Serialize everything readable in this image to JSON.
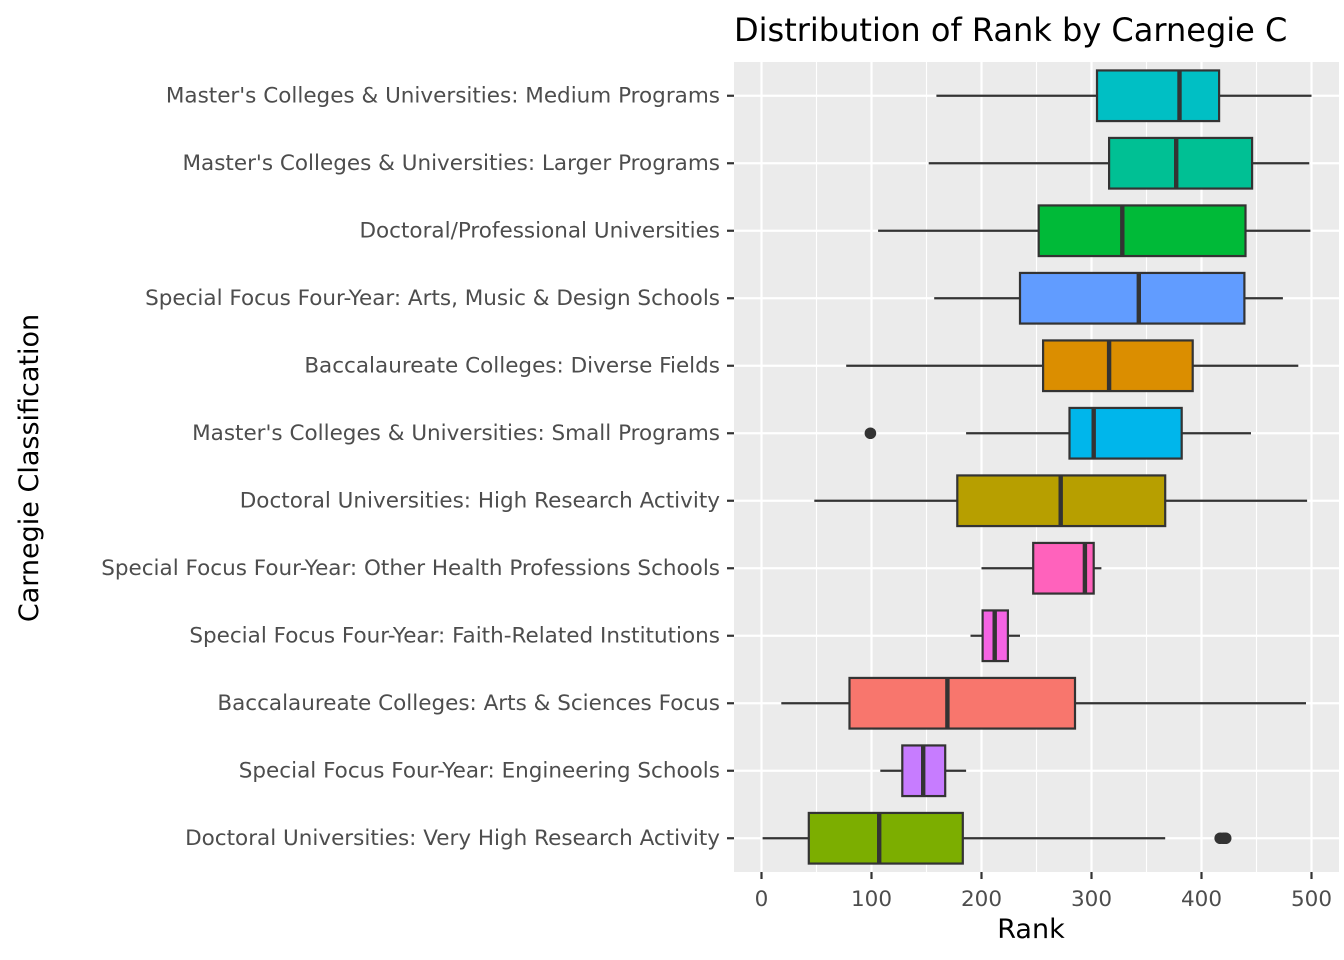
{
  "chart_data": {
    "type": "boxplot",
    "title": "Distribution of Rank by Carnegie C",
    "xlabel": "Rank",
    "ylabel": "Carnegie Classification",
    "xlim": [
      -25,
      525
    ],
    "x_ticks": [
      0,
      100,
      200,
      300,
      400,
      500
    ],
    "x_tick_labels": [
      "0",
      "100",
      "200",
      "300",
      "400",
      "500"
    ],
    "legend": "none",
    "grid": true,
    "categories": [
      "Master's Colleges & Universities: Medium Programs",
      "Master's Colleges & Universities: Larger Programs",
      "Doctoral/Professional Universities",
      "Special Focus Four-Year: Arts, Music & Design Schools",
      "Baccalaureate Colleges: Diverse Fields",
      "Master's Colleges & Universities: Small Programs",
      "Doctoral Universities: High Research Activity",
      "Special Focus Four-Year: Other Health Professions Schools",
      "Special Focus Four-Year: Faith-Related Institutions",
      "Baccalaureate Colleges: Arts & Sciences Focus",
      "Special Focus Four-Year: Engineering Schools",
      "Doctoral Universities: Very High Research Activity"
    ],
    "boxes": [
      {
        "min": 159,
        "q1": 305,
        "median": 380,
        "q3": 416,
        "max": 500,
        "outliers": [],
        "color": "#00BFC4"
      },
      {
        "min": 152,
        "q1": 316,
        "median": 377,
        "q3": 446,
        "max": 498,
        "outliers": [],
        "color": "#00C094"
      },
      {
        "min": 106,
        "q1": 252,
        "median": 328,
        "q3": 440,
        "max": 499,
        "outliers": [],
        "color": "#00BA38"
      },
      {
        "min": 157,
        "q1": 235,
        "median": 343,
        "q3": 439,
        "max": 474,
        "outliers": [],
        "color": "#619CFF"
      },
      {
        "min": 77,
        "q1": 256,
        "median": 316,
        "q3": 392,
        "max": 488,
        "outliers": [],
        "color": "#DB8E00"
      },
      {
        "min": 186,
        "q1": 280,
        "median": 302,
        "q3": 382,
        "max": 445,
        "outliers": [
          99
        ],
        "color": "#00B6EB"
      },
      {
        "min": 48,
        "q1": 178,
        "median": 272,
        "q3": 367,
        "max": 496,
        "outliers": [],
        "color": "#B79F00"
      },
      {
        "min": 200,
        "q1": 247,
        "median": 294,
        "q3": 302,
        "max": 309,
        "outliers": [],
        "color": "#FF62BC"
      },
      {
        "min": 190,
        "q1": 201,
        "median": 212,
        "q3": 224,
        "max": 235,
        "outliers": [],
        "color": "#F564E3"
      },
      {
        "min": 18,
        "q1": 80,
        "median": 169,
        "q3": 285,
        "max": 495,
        "outliers": [],
        "color": "#F8766D"
      },
      {
        "min": 108,
        "q1": 128,
        "median": 147,
        "q3": 167,
        "max": 186,
        "outliers": [],
        "color": "#C77CFF"
      },
      {
        "min": 1,
        "q1": 43,
        "median": 107,
        "q3": 183,
        "max": 367,
        "outliers": [
          417,
          420,
          422
        ],
        "color": "#7CAE00"
      }
    ]
  }
}
